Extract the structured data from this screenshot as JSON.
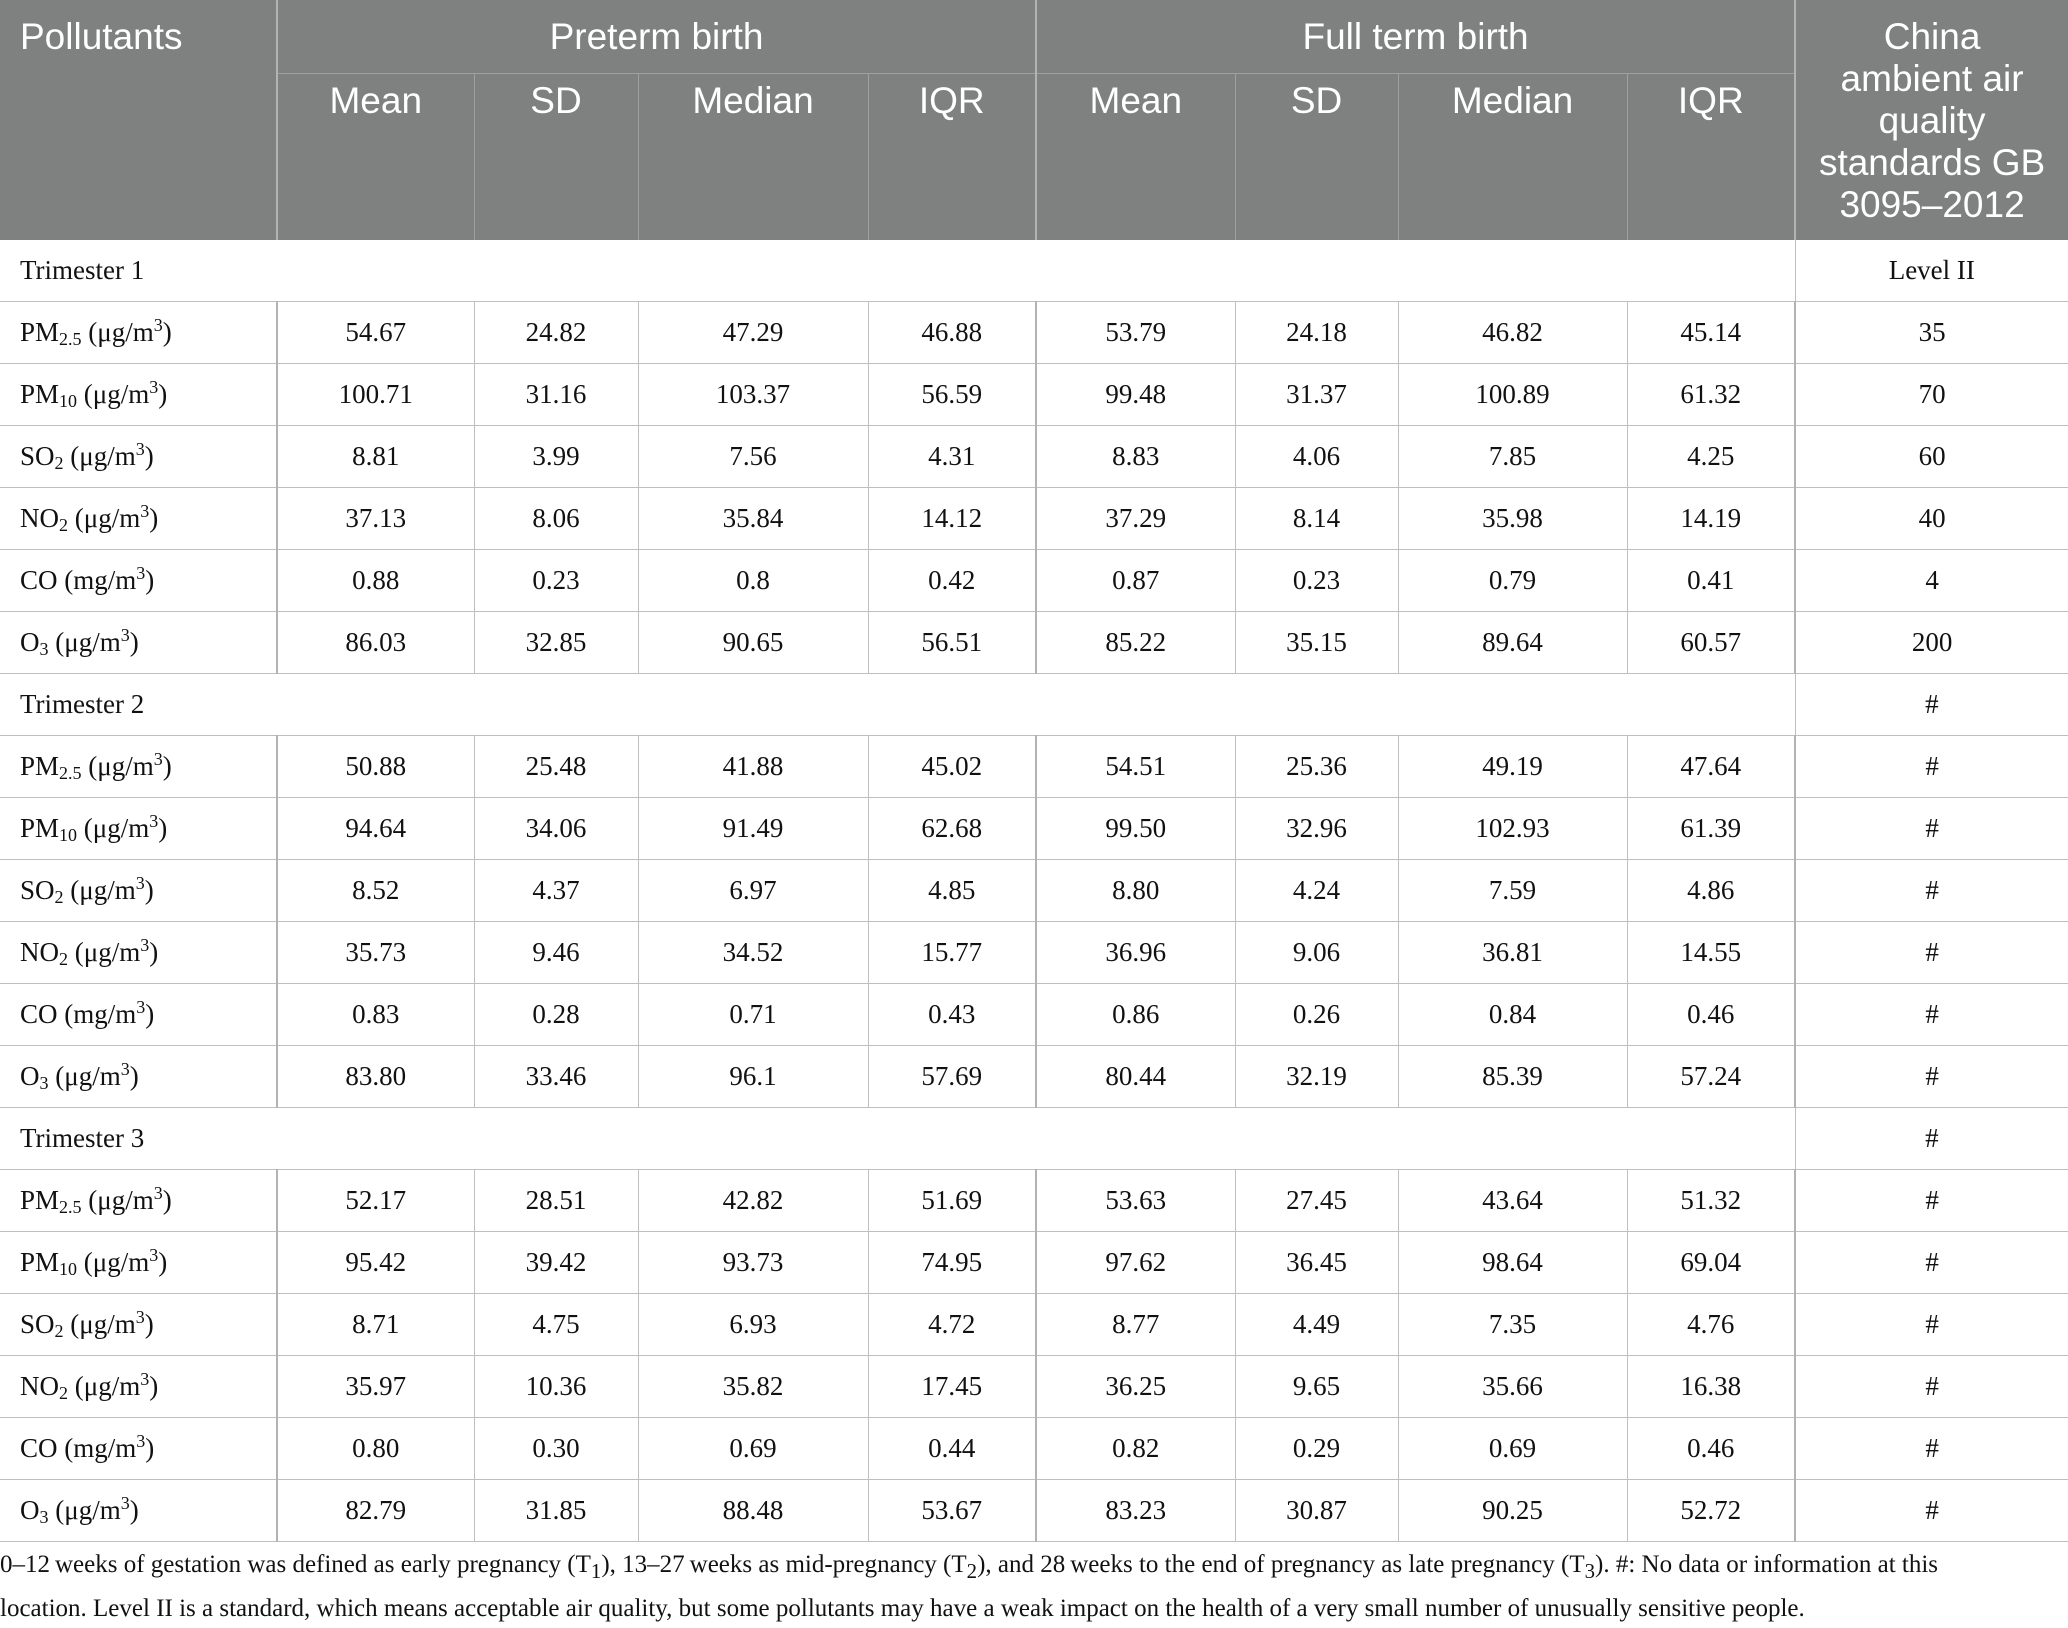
{
  "header": {
    "pollutants": "Pollutants",
    "preterm": "Preterm birth",
    "fullterm": "Full term birth",
    "standard_l1": "China",
    "standard_l2": "ambient air",
    "standard_l3": "quality",
    "standard_l4": "standards GB",
    "standard_l5": "3095–2012",
    "sub": [
      "Mean",
      "SD",
      "Median",
      "IQR",
      "Mean",
      "SD",
      "Median",
      "IQR"
    ]
  },
  "pollutant_labels": {
    "pm25": {
      "a": "PM",
      "sub": "2.5",
      "b": " (μg/m",
      "sup": "3",
      "c": ")"
    },
    "pm10": {
      "a": "PM",
      "sub": "10",
      "b": " (μg/m",
      "sup": "3",
      "c": ")"
    },
    "so2": {
      "a": "SO",
      "sub": "2",
      "b": " (μg/m",
      "sup": "3",
      "c": ")"
    },
    "no2": {
      "a": "NO",
      "sub": "2",
      "b": " (μg/m",
      "sup": "3",
      "c": ")"
    },
    "co": {
      "a": "CO",
      "sub": "",
      "b": " (mg/m",
      "sup": "3",
      "c": ")"
    },
    "o3": {
      "a": "O",
      "sub": "3",
      "b": " (μg/m",
      "sup": "3",
      "c": ")"
    }
  },
  "sections": [
    {
      "label": "Trimester 1",
      "standard": "Level II",
      "rows": [
        {
          "key": "pm25",
          "values": [
            "54.67",
            "24.82",
            "47.29",
            "46.88",
            "53.79",
            "24.18",
            "46.82",
            "45.14"
          ],
          "standard": "35"
        },
        {
          "key": "pm10",
          "values": [
            "100.71",
            "31.16",
            "103.37",
            "56.59",
            "99.48",
            "31.37",
            "100.89",
            "61.32"
          ],
          "standard": "70"
        },
        {
          "key": "so2",
          "values": [
            "8.81",
            "3.99",
            "7.56",
            "4.31",
            "8.83",
            "4.06",
            "7.85",
            "4.25"
          ],
          "standard": "60"
        },
        {
          "key": "no2",
          "values": [
            "37.13",
            "8.06",
            "35.84",
            "14.12",
            "37.29",
            "8.14",
            "35.98",
            "14.19"
          ],
          "standard": "40"
        },
        {
          "key": "co",
          "values": [
            "0.88",
            "0.23",
            "0.8",
            "0.42",
            "0.87",
            "0.23",
            "0.79",
            "0.41"
          ],
          "standard": "4"
        },
        {
          "key": "o3",
          "values": [
            "86.03",
            "32.85",
            "90.65",
            "56.51",
            "85.22",
            "35.15",
            "89.64",
            "60.57"
          ],
          "standard": "200"
        }
      ]
    },
    {
      "label": "Trimester 2",
      "standard": "#",
      "rows": [
        {
          "key": "pm25",
          "values": [
            "50.88",
            "25.48",
            "41.88",
            "45.02",
            "54.51",
            "25.36",
            "49.19",
            "47.64"
          ],
          "standard": "#"
        },
        {
          "key": "pm10",
          "values": [
            "94.64",
            "34.06",
            "91.49",
            "62.68",
            "99.50",
            "32.96",
            "102.93",
            "61.39"
          ],
          "standard": "#"
        },
        {
          "key": "so2",
          "values": [
            "8.52",
            "4.37",
            "6.97",
            "4.85",
            "8.80",
            "4.24",
            "7.59",
            "4.86"
          ],
          "standard": "#"
        },
        {
          "key": "no2",
          "values": [
            "35.73",
            "9.46",
            "34.52",
            "15.77",
            "36.96",
            "9.06",
            "36.81",
            "14.55"
          ],
          "standard": "#"
        },
        {
          "key": "co",
          "values": [
            "0.83",
            "0.28",
            "0.71",
            "0.43",
            "0.86",
            "0.26",
            "0.84",
            "0.46"
          ],
          "standard": "#"
        },
        {
          "key": "o3",
          "values": [
            "83.80",
            "33.46",
            "96.1",
            "57.69",
            "80.44",
            "32.19",
            "85.39",
            "57.24"
          ],
          "standard": "#"
        }
      ]
    },
    {
      "label": "Trimester 3",
      "standard": "#",
      "rows": [
        {
          "key": "pm25",
          "values": [
            "52.17",
            "28.51",
            "42.82",
            "51.69",
            "53.63",
            "27.45",
            "43.64",
            "51.32"
          ],
          "standard": "#"
        },
        {
          "key": "pm10",
          "values": [
            "95.42",
            "39.42",
            "93.73",
            "74.95",
            "97.62",
            "36.45",
            "98.64",
            "69.04"
          ],
          "standard": "#"
        },
        {
          "key": "so2",
          "values": [
            "8.71",
            "4.75",
            "6.93",
            "4.72",
            "8.77",
            "4.49",
            "7.35",
            "4.76"
          ],
          "standard": "#"
        },
        {
          "key": "no2",
          "values": [
            "35.97",
            "10.36",
            "35.82",
            "17.45",
            "36.25",
            "9.65",
            "35.66",
            "16.38"
          ],
          "standard": "#"
        },
        {
          "key": "co",
          "values": [
            "0.80",
            "0.30",
            "0.69",
            "0.44",
            "0.82",
            "0.29",
            "0.69",
            "0.46"
          ],
          "standard": "#"
        },
        {
          "key": "o3",
          "values": [
            "82.79",
            "31.85",
            "88.48",
            "53.67",
            "83.23",
            "30.87",
            "90.25",
            "52.72"
          ],
          "standard": "#"
        }
      ]
    }
  ],
  "footnote": {
    "p1_a": "0–12 weeks of gestation was defined as early pregnancy (T",
    "p1_s1": "1",
    "p1_b": "), 13–27 weeks as mid-pregnancy (T",
    "p1_s2": "2",
    "p1_c": "), and 28 weeks to the end of pregnancy as late pregnancy (T",
    "p1_s3": "3",
    "p1_d": "). #: No data or information at this",
    "p2": "location. Level II is a standard, which means acceptable air quality, but some pollutants may have a weak impact on the health of a very small number of unusually sensitive people."
  }
}
